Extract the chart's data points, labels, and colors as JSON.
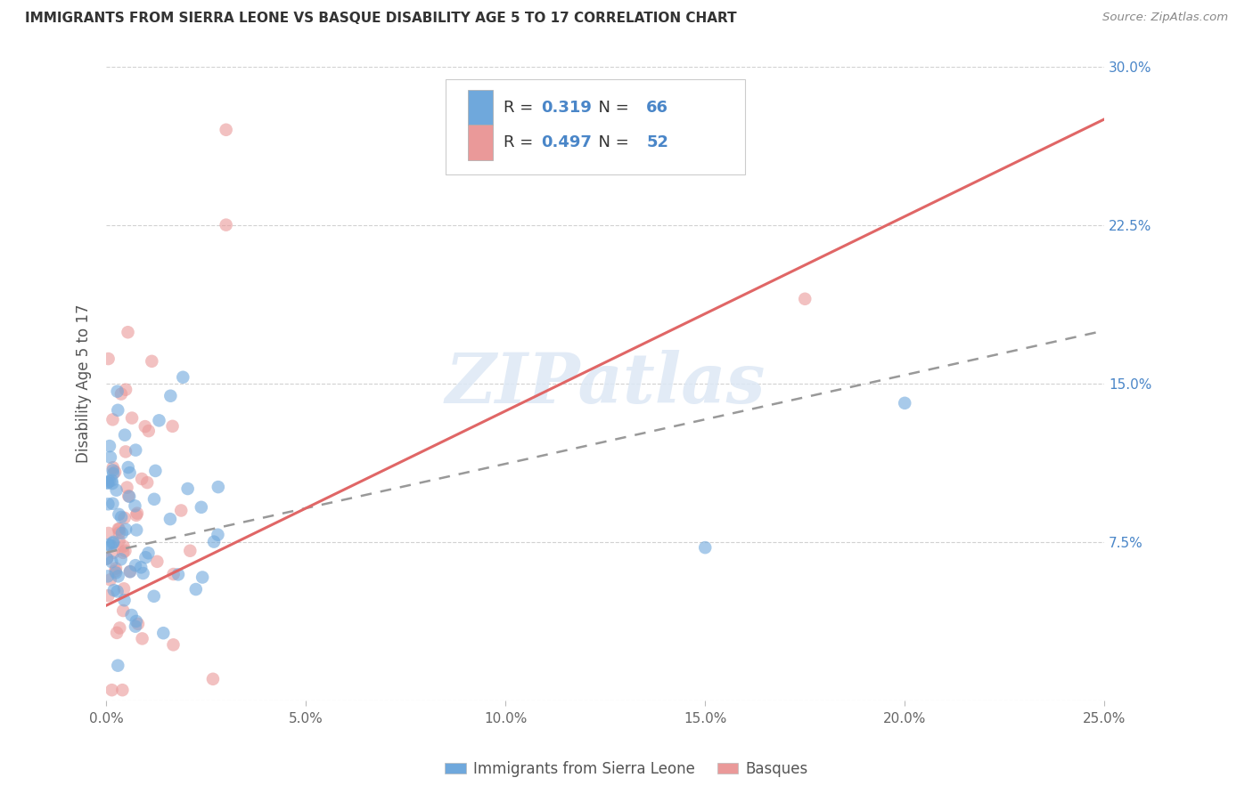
{
  "title": "IMMIGRANTS FROM SIERRA LEONE VS BASQUE DISABILITY AGE 5 TO 17 CORRELATION CHART",
  "source": "Source: ZipAtlas.com",
  "ylabel": "Disability Age 5 to 17",
  "legend_labels": [
    "Immigrants from Sierra Leone",
    "Basques"
  ],
  "blue_R": 0.319,
  "blue_N": 66,
  "pink_R": 0.497,
  "pink_N": 52,
  "xlim": [
    0.0,
    0.25
  ],
  "ylim": [
    0.0,
    0.3
  ],
  "xticks": [
    0.0,
    0.05,
    0.1,
    0.15,
    0.2,
    0.25
  ],
  "xtick_labels": [
    "0.0%",
    "5.0%",
    "10.0%",
    "15.0%",
    "20.0%",
    "25.0%"
  ],
  "yticks": [
    0.0,
    0.075,
    0.15,
    0.225,
    0.3
  ],
  "ytick_labels_right": [
    "",
    "7.5%",
    "15.0%",
    "22.5%",
    "30.0%"
  ],
  "blue_color": "#6fa8dc",
  "pink_color": "#ea9999",
  "blue_line_color": "#6699cc",
  "pink_line_color": "#e06666",
  "watermark": "ZIPatlas",
  "blue_scatter_seed": 42,
  "pink_scatter_seed": 7,
  "blue_trend_x": [
    0.0,
    0.25
  ],
  "blue_trend_y": [
    0.07,
    0.175
  ],
  "pink_trend_x": [
    0.0,
    0.25
  ],
  "pink_trend_y": [
    0.045,
    0.275
  ]
}
